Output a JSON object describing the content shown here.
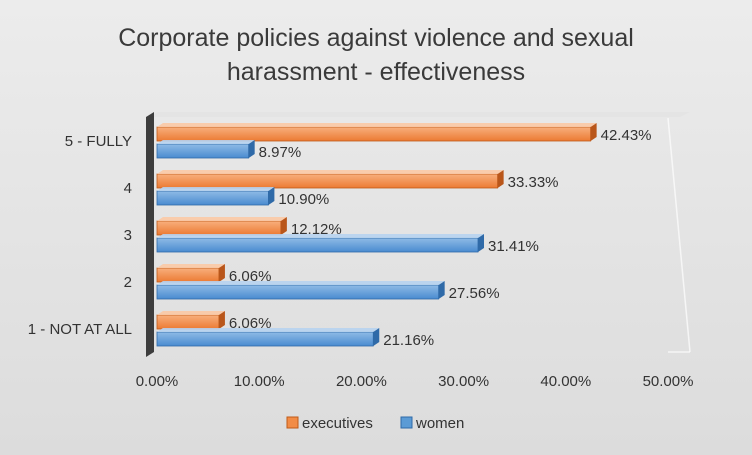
{
  "chart_data": {
    "type": "bar",
    "orientation": "horizontal",
    "title_lines": [
      "Corporate policies against violence and sexual",
      "harassment -  effectiveness"
    ],
    "categories": [
      "5 - FULLY",
      "4",
      "3",
      "2",
      "1 - NOT AT ALL"
    ],
    "series": [
      {
        "name": "executives",
        "color": "#f28c46",
        "values": [
          42.43,
          33.33,
          12.12,
          6.06,
          6.06
        ]
      },
      {
        "name": "women",
        "color": "#5b9bd5",
        "values": [
          8.97,
          10.9,
          31.41,
          27.56,
          21.16
        ]
      }
    ],
    "data_labels": {
      "executives": [
        "42.43%",
        "33.33%",
        "12.12%",
        "6.06%",
        "6.06%"
      ],
      "women": [
        "8.97%",
        "10.90%",
        "31.41%",
        "27.56%",
        "21.16%"
      ]
    },
    "xlim": [
      0,
      50
    ],
    "x_ticks": [
      0,
      10,
      20,
      30,
      40,
      50
    ],
    "x_tick_labels": [
      "0.00%",
      "10.00%",
      "20.00%",
      "30.00%",
      "40.00%",
      "50.00%"
    ],
    "legend_position": "bottom",
    "grid": false
  }
}
